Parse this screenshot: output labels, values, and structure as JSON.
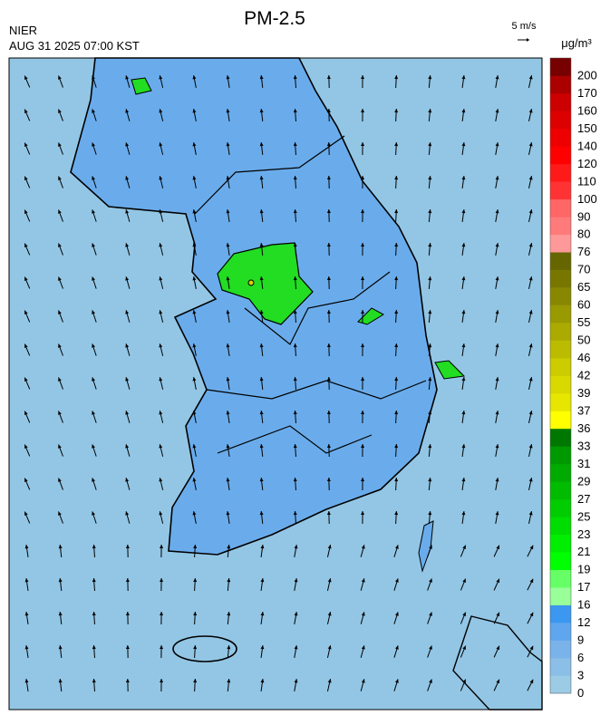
{
  "header": {
    "title": "PM-2.5",
    "agency": "NIER",
    "time": "AUG 31 2025 07:00 KST",
    "wind_scale": "5 m/s",
    "unit": "μg/m³"
  },
  "legend": {
    "labels": [
      "0",
      "3",
      "6",
      "9",
      "12",
      "16",
      "17",
      "19",
      "21",
      "23",
      "25",
      "27",
      "29",
      "31",
      "33",
      "36",
      "37",
      "39",
      "42",
      "46",
      "50",
      "55",
      "60",
      "65",
      "70",
      "76",
      "80",
      "90",
      "100",
      "110",
      "120",
      "140",
      "150",
      "160",
      "170",
      "200"
    ],
    "colors": [
      "#9ccbe6",
      "#8bbfe8",
      "#79b3ea",
      "#5fa6ee",
      "#3b97f0",
      "#99ff99",
      "#66ff66",
      "#00ff00",
      "#00ee00",
      "#00dd00",
      "#00cc00",
      "#00bb00",
      "#00aa00",
      "#009900",
      "#007700",
      "#ffff00",
      "#e6e600",
      "#d9d900",
      "#cccc00",
      "#bbbb00",
      "#aaaa00",
      "#999900",
      "#888800",
      "#777700",
      "#666600",
      "#ff9999",
      "#ff7a7a",
      "#ff6666",
      "#ff3333",
      "#ff1a1a",
      "#ff0000",
      "#ee0000",
      "#dd0000",
      "#cc0000",
      "#aa0000",
      "#770000"
    ]
  }
}
